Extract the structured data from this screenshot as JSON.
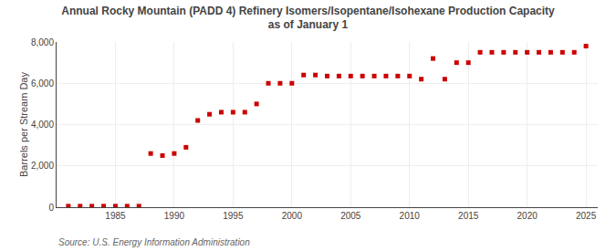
{
  "chart_data": {
    "type": "scatter",
    "title": "Annual Rocky Mountain (PADD 4) Refinery Isomers/Isopentane/Isohexane Production Capacity\nas of January 1",
    "y_label": "Barrels per Stream Day",
    "annotations": [
      "Source: U.S. Energy Information Administration"
    ],
    "x": [
      1981,
      1982,
      1983,
      1984,
      1985,
      1986,
      1987,
      1988,
      1989,
      1990,
      1991,
      1992,
      1993,
      1994,
      1995,
      1996,
      1997,
      1998,
      1999,
      2000,
      2001,
      2002,
      2003,
      2004,
      2005,
      2006,
      2007,
      2008,
      2009,
      2010,
      2011,
      2012,
      2013,
      2014,
      2015,
      2016,
      2017,
      2018,
      2019,
      2020,
      2021,
      2022,
      2023,
      2024,
      2025
    ],
    "values": [
      50,
      50,
      50,
      50,
      50,
      50,
      50,
      2600,
      2500,
      2600,
      2900,
      4200,
      4500,
      4600,
      4600,
      4600,
      5000,
      6000,
      6000,
      6000,
      6400,
      6400,
      6350,
      6350,
      6350,
      6350,
      6350,
      6350,
      6350,
      6350,
      6200,
      7200,
      6200,
      7000,
      7000,
      7500,
      7500,
      7500,
      7500,
      7500,
      7500,
      7500,
      7500,
      7500,
      7800
    ],
    "color": "#cc0000",
    "marker": "square",
    "xlim": [
      1980,
      2026
    ],
    "xticks": [
      1985,
      1990,
      1995,
      2000,
      2005,
      2010,
      2015,
      2020,
      2025
    ],
    "ylim": [
      0,
      8000
    ],
    "yticks": [
      0,
      {
        "value": 2000,
        "label": "2,000"
      },
      {
        "value": 4000,
        "label": "4,000"
      },
      {
        "value": 6000,
        "label": "6,000"
      },
      {
        "value": 8000,
        "label": "8,000"
      }
    ],
    "grid": true
  }
}
